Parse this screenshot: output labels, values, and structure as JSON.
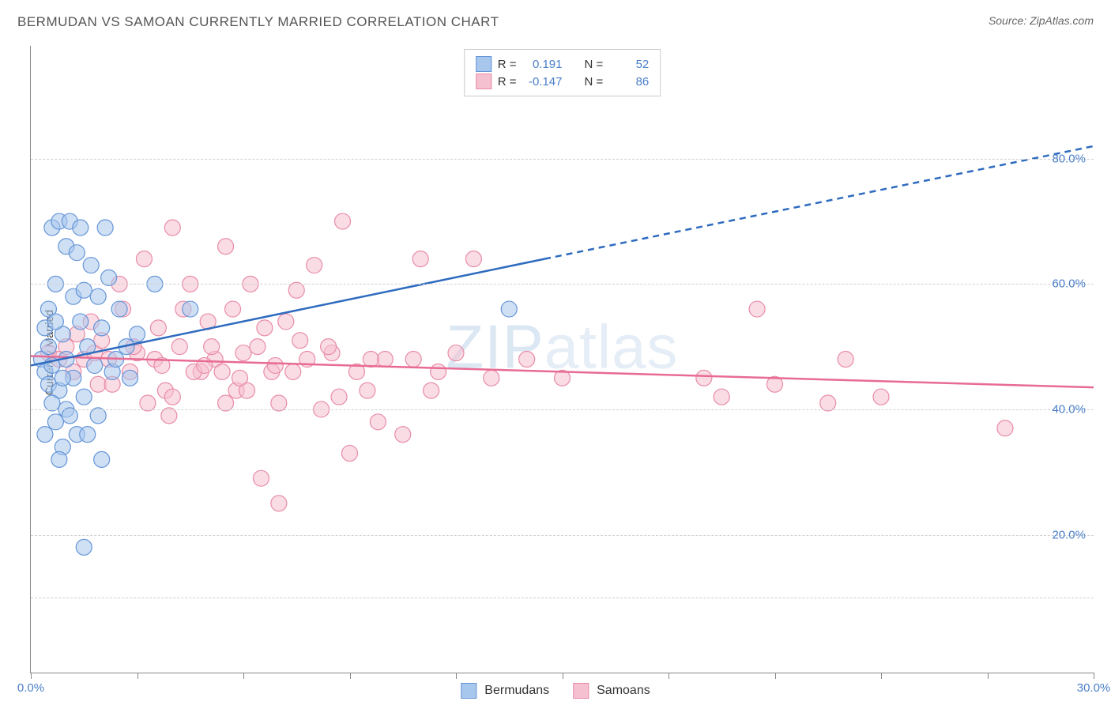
{
  "title": "BERMUDAN VS SAMOAN CURRENTLY MARRIED CORRELATION CHART",
  "source_label": "Source: ZipAtlas.com",
  "ylabel": "Currently Married",
  "watermark": {
    "bold": "ZIP",
    "light": "atlas"
  },
  "colors": {
    "blue_fill": "#a8c7ec",
    "blue_stroke": "#6495d8",
    "blue_line": "#2e6bbf",
    "pink_fill": "#f5c0cf",
    "pink_stroke": "#e88ca8",
    "pink_line": "#e86b94",
    "axis_text": "#4a7ec8",
    "grid": "#d0d0d0",
    "border": "#888888",
    "text": "#555555",
    "bg": "#ffffff"
  },
  "stats": {
    "series1": {
      "R_label": "R =",
      "R": "0.191",
      "N_label": "N =",
      "N": "52"
    },
    "series2": {
      "R_label": "R =",
      "R": "-0.147",
      "N_label": "N =",
      "N": "86"
    }
  },
  "legend": {
    "series1": "Bermudans",
    "series2": "Samoans"
  },
  "chart": {
    "type": "scatter",
    "xlim": [
      0,
      30
    ],
    "ylim": [
      0,
      100
    ],
    "x_ticks": [
      0,
      3,
      6,
      9,
      12,
      15,
      18,
      21,
      24,
      27,
      30
    ],
    "x_tick_labels": {
      "0": "0.0%",
      "30": "30.0%"
    },
    "y_gridlines": [
      12,
      22,
      42,
      62,
      82
    ],
    "y_tick_labels": {
      "22": "20.0%",
      "42": "40.0%",
      "62": "60.0%",
      "82": "80.0%"
    },
    "marker_radius": 10,
    "marker_opacity": 0.55,
    "line_width": 2.5,
    "blue_line": {
      "x1": 0,
      "y1": 49,
      "x2_solid": 14.5,
      "y2_solid": 66,
      "x2_dash": 30,
      "y2_dash": 84
    },
    "pink_line": {
      "x1": 0,
      "y1": 50.5,
      "x2": 30,
      "y2": 45.5
    },
    "blue_points": [
      [
        0.3,
        50
      ],
      [
        0.4,
        48
      ],
      [
        0.4,
        55
      ],
      [
        0.5,
        52
      ],
      [
        0.5,
        46
      ],
      [
        0.5,
        58
      ],
      [
        0.6,
        71
      ],
      [
        0.6,
        49
      ],
      [
        0.7,
        40
      ],
      [
        0.7,
        62
      ],
      [
        0.8,
        72
      ],
      [
        0.8,
        45
      ],
      [
        0.9,
        54
      ],
      [
        0.9,
        36
      ],
      [
        1.0,
        68
      ],
      [
        1.0,
        50
      ],
      [
        1.0,
        42
      ],
      [
        1.1,
        72
      ],
      [
        1.2,
        60
      ],
      [
        1.2,
        47
      ],
      [
        1.3,
        38
      ],
      [
        1.4,
        71
      ],
      [
        1.4,
        56
      ],
      [
        1.5,
        44
      ],
      [
        1.5,
        20
      ],
      [
        1.6,
        52
      ],
      [
        1.7,
        65
      ],
      [
        1.8,
        49
      ],
      [
        1.9,
        41
      ],
      [
        2.0,
        55
      ],
      [
        2.1,
        71
      ],
      [
        2.2,
        63
      ],
      [
        2.3,
        48
      ],
      [
        2.5,
        58
      ],
      [
        2.7,
        52
      ],
      [
        2.0,
        34
      ],
      [
        1.6,
        38
      ],
      [
        0.8,
        34
      ],
      [
        1.1,
        41
      ],
      [
        0.6,
        43
      ],
      [
        1.3,
        67
      ],
      [
        1.9,
        60
      ],
      [
        3.0,
        54
      ],
      [
        3.5,
        62
      ],
      [
        2.8,
        47
      ],
      [
        4.5,
        58
      ],
      [
        0.4,
        38
      ],
      [
        0.7,
        56
      ],
      [
        0.9,
        47
      ],
      [
        1.5,
        61
      ],
      [
        2.4,
        50
      ],
      [
        13.5,
        58
      ]
    ],
    "pink_points": [
      [
        0.5,
        51
      ],
      [
        0.8,
        50
      ],
      [
        1.0,
        52
      ],
      [
        1.2,
        48
      ],
      [
        1.5,
        50
      ],
      [
        1.8,
        51
      ],
      [
        2.0,
        53
      ],
      [
        2.2,
        50
      ],
      [
        2.5,
        62
      ],
      [
        2.8,
        48
      ],
      [
        3.0,
        51
      ],
      [
        3.2,
        66
      ],
      [
        3.5,
        50
      ],
      [
        3.8,
        45
      ],
      [
        4.0,
        71
      ],
      [
        4.2,
        52
      ],
      [
        4.5,
        62
      ],
      [
        4.8,
        48
      ],
      [
        5.0,
        56
      ],
      [
        5.2,
        50
      ],
      [
        5.5,
        68
      ],
      [
        5.8,
        45
      ],
      [
        6.0,
        51
      ],
      [
        6.2,
        62
      ],
      [
        6.5,
        31
      ],
      [
        6.8,
        48
      ],
      [
        7.0,
        43
      ],
      [
        7.2,
        56
      ],
      [
        7.5,
        61
      ],
      [
        7.8,
        50
      ],
      [
        8.0,
        65
      ],
      [
        8.2,
        42
      ],
      [
        8.5,
        51
      ],
      [
        8.8,
        72
      ],
      [
        9.0,
        35
      ],
      [
        9.2,
        48
      ],
      [
        9.5,
        45
      ],
      [
        10.0,
        50
      ],
      [
        10.5,
        38
      ],
      [
        11.0,
        66
      ],
      [
        11.5,
        48
      ],
      [
        12.0,
        51
      ],
      [
        12.5,
        66
      ],
      [
        13.0,
        47
      ],
      [
        14.0,
        50
      ],
      [
        15.0,
        47
      ],
      [
        7.0,
        27
      ],
      [
        5.5,
        43
      ],
      [
        4.0,
        44
      ],
      [
        4.3,
        58
      ],
      [
        3.6,
        55
      ],
      [
        2.6,
        58
      ],
      [
        3.3,
        43
      ],
      [
        1.9,
        46
      ],
      [
        2.3,
        46
      ],
      [
        3.9,
        41
      ],
      [
        4.6,
        48
      ],
      [
        5.1,
        52
      ],
      [
        5.7,
        58
      ],
      [
        6.4,
        52
      ],
      [
        6.9,
        49
      ],
      [
        7.6,
        53
      ],
      [
        8.7,
        44
      ],
      [
        9.8,
        40
      ],
      [
        10.8,
        50
      ],
      [
        11.3,
        45
      ],
      [
        6.1,
        45
      ],
      [
        5.4,
        48
      ],
      [
        8.4,
        52
      ],
      [
        9.6,
        50
      ],
      [
        2.9,
        52
      ],
      [
        3.7,
        49
      ],
      [
        7.4,
        48
      ],
      [
        6.6,
        55
      ],
      [
        4.9,
        49
      ],
      [
        5.9,
        47
      ],
      [
        19.0,
        47
      ],
      [
        19.5,
        44
      ],
      [
        20.5,
        58
      ],
      [
        21.0,
        46
      ],
      [
        22.5,
        43
      ],
      [
        23.0,
        50
      ],
      [
        24.0,
        44
      ],
      [
        27.5,
        39
      ],
      [
        1.3,
        54
      ],
      [
        1.7,
        56
      ]
    ]
  }
}
